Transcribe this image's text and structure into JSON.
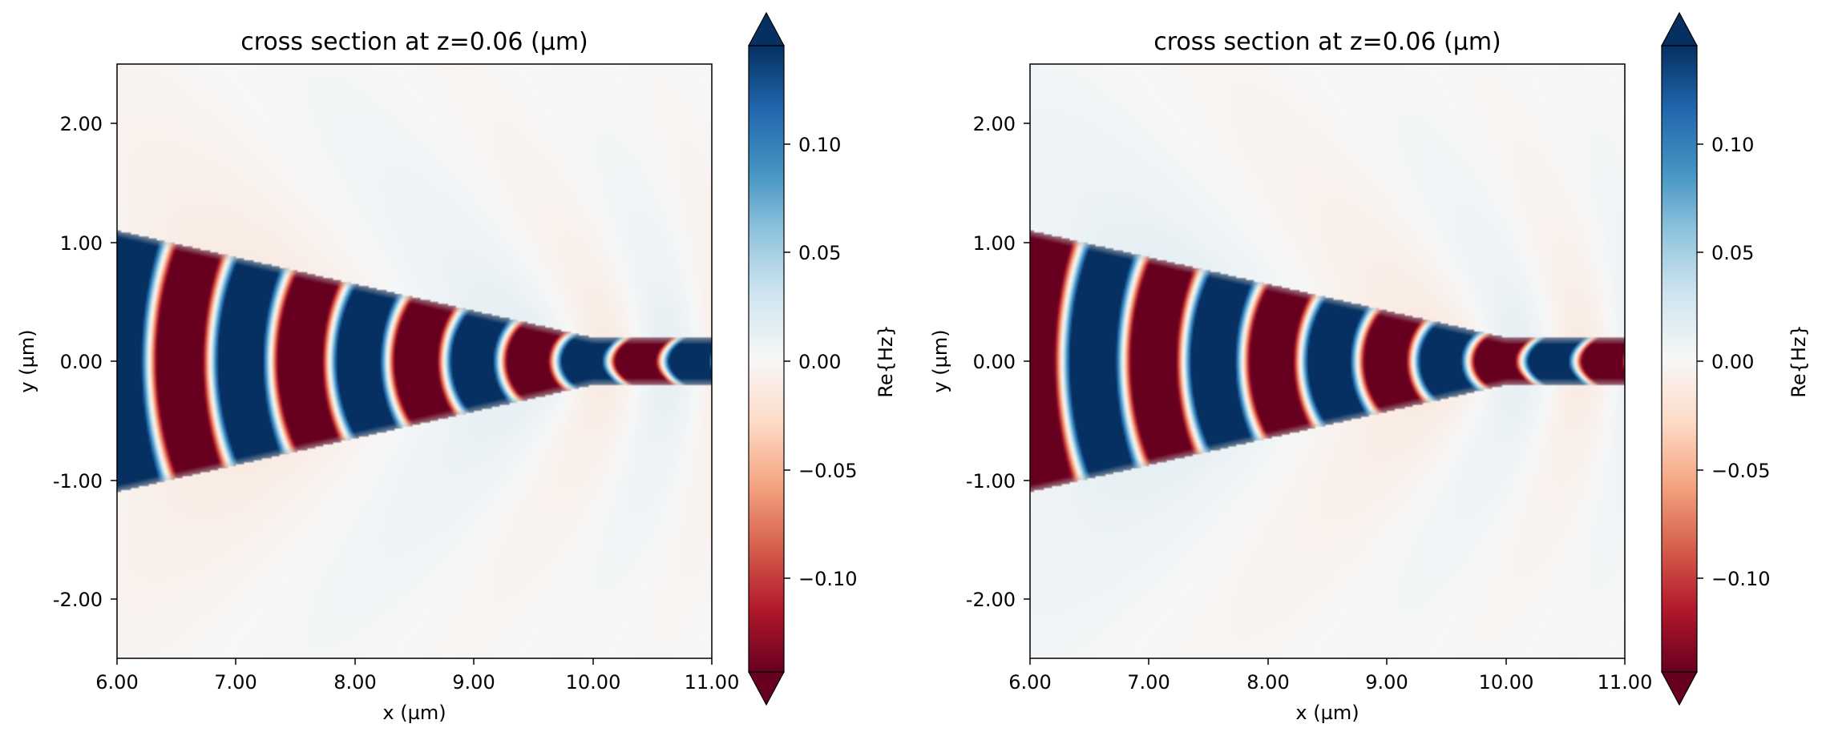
{
  "chart_data": [
    {
      "type": "heatmap",
      "title": "cross section at z=0.06 (µm)",
      "xlabel": "x (µm)",
      "ylabel": "y (µm)",
      "xlim": [
        6.0,
        11.0
      ],
      "ylim": [
        -2.5,
        2.5
      ],
      "xticks": [
        "6.00",
        "7.00",
        "8.00",
        "9.00",
        "10.00",
        "11.00"
      ],
      "yticks": [
        "2.00",
        "1.00",
        "0.00",
        "-1.00",
        "-2.00"
      ],
      "colorbar": {
        "label": "Re{Hz}",
        "colormap": "RdBu",
        "vmin": -0.14,
        "vmax": 0.14,
        "extend": "both",
        "ticks": [
          "0.10",
          "0.05",
          "0.00",
          "−0.05",
          "−0.10"
        ]
      },
      "structure": {
        "taper_half_width_start": 1.1,
        "taper_x_start": 6.0,
        "taper_x_end": 10.0,
        "waveguide_half_width": 0.2,
        "waveguide_x_end": 11.0
      },
      "field": {
        "phase": 0
      }
    },
    {
      "type": "heatmap",
      "title": "cross section at z=0.06 (µm)",
      "xlabel": "x (µm)",
      "ylabel": "y (µm)",
      "xlim": [
        6.0,
        11.0
      ],
      "ylim": [
        -2.5,
        2.5
      ],
      "xticks": [
        "6.00",
        "7.00",
        "8.00",
        "9.00",
        "10.00",
        "11.00"
      ],
      "yticks": [
        "2.00",
        "1.00",
        "0.00",
        "-1.00",
        "-2.00"
      ],
      "colorbar": {
        "label": "Re{Hz}",
        "colormap": "RdBu",
        "vmin": -0.14,
        "vmax": 0.14,
        "extend": "both",
        "ticks": [
          "0.10",
          "0.05",
          "0.00",
          "−0.05",
          "−0.10"
        ]
      },
      "structure": {
        "taper_half_width_start": 1.1,
        "taper_x_start": 6.0,
        "taper_x_end": 10.0,
        "waveguide_half_width": 0.2,
        "waveguide_x_end": 11.0
      },
      "field": {
        "phase": 3.14159
      }
    }
  ]
}
